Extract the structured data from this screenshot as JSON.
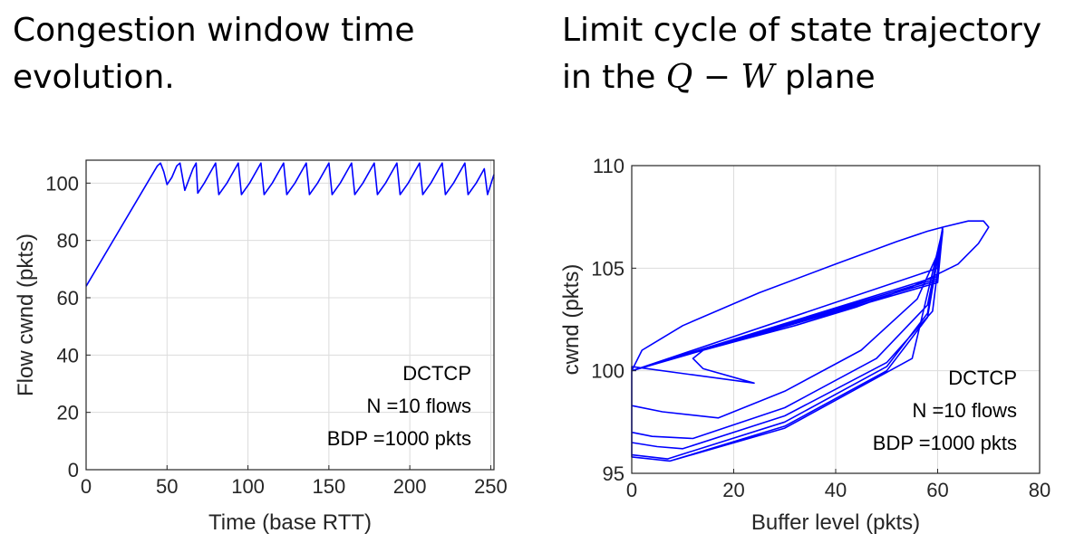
{
  "captions": {
    "left": "Congestion window time evolution.",
    "right_prefix": "Limit cycle of state trajectory in the ",
    "right_math": "Q − W",
    "right_suffix": " plane"
  },
  "colors": {
    "series": "#0000ff",
    "grid": "#dcdcdc",
    "axis": "#262626"
  },
  "chart_data": [
    {
      "type": "line",
      "title": "",
      "xlabel": "Time (base RTT)",
      "ylabel": "Flow cwnd (pkts)",
      "xlim": [
        0,
        252
      ],
      "ylim": [
        0,
        108
      ],
      "xticks": [
        0,
        50,
        100,
        150,
        200,
        250
      ],
      "yticks": [
        0,
        20,
        40,
        60,
        80,
        100
      ],
      "grid": true,
      "annotations": [
        "DCTCP",
        "N =10 flows",
        "BDP =1000 pkts"
      ],
      "series": [
        {
          "x": [
            0,
            44,
            46,
            48,
            50,
            53,
            56,
            58,
            61,
            66,
            68,
            69,
            73,
            78,
            80,
            82,
            87,
            92,
            94,
            96,
            101,
            106,
            108,
            110,
            115,
            120,
            122,
            124,
            129,
            134,
            136,
            138,
            143,
            148,
            150,
            152,
            157,
            162,
            164,
            166,
            171,
            176,
            178,
            180,
            185,
            190,
            192,
            194,
            199,
            204,
            206,
            208,
            213,
            218,
            220,
            222,
            227,
            232,
            234,
            236,
            241,
            246,
            248,
            252
          ],
          "y": [
            64,
            106,
            107,
            104,
            99.5,
            102,
            106,
            107,
            97.5,
            105,
            107,
            96.5,
            100,
            105,
            107,
            96,
            100,
            105,
            107,
            96,
            100,
            105,
            107,
            96,
            100,
            105,
            107,
            96,
            100,
            105,
            107,
            96,
            100,
            105,
            107,
            96,
            100,
            105,
            107,
            96,
            100,
            105,
            107,
            96,
            100,
            105,
            107,
            96,
            100,
            105,
            107,
            96,
            100,
            105,
            107,
            96,
            100,
            105,
            107,
            96,
            100,
            105,
            96,
            103
          ]
        }
      ]
    },
    {
      "type": "line",
      "title": "",
      "xlabel": "Buffer level (pkts)",
      "ylabel": "cwnd (pkts)",
      "xlim": [
        0,
        80
      ],
      "ylim": [
        95,
        110
      ],
      "xticks": [
        0,
        20,
        40,
        60,
        80
      ],
      "yticks": [
        95,
        100,
        105,
        110
      ],
      "grid": true,
      "annotations": [
        "DCTCP",
        "N =10 flows",
        "BDP =1000 pkts"
      ],
      "series": [
        {
          "x": [
            0,
            2,
            10,
            25,
            40,
            52,
            58,
            61,
            66,
            69,
            70,
            68,
            64,
            55,
            44,
            32,
            20,
            14,
            12,
            14,
            24,
            0,
            0,
            6,
            17,
            30,
            45,
            56,
            60,
            61,
            60,
            0,
            0,
            4,
            12,
            30,
            48,
            58,
            61,
            60,
            0,
            0,
            5,
            10,
            30,
            50,
            59,
            61,
            60,
            0,
            0,
            7,
            30,
            50,
            58,
            61,
            60,
            0,
            0,
            7.5,
            30,
            50,
            58,
            61,
            60,
            0,
            0,
            7.5,
            30,
            55,
            61
          ],
          "y": [
            100,
            101,
            102.2,
            103.8,
            105.2,
            106.3,
            106.8,
            107,
            107.3,
            107.3,
            107,
            106.2,
            105.2,
            104.1,
            103.1,
            102.2,
            101.4,
            101,
            100.6,
            100.1,
            99.4,
            100.2,
            98.3,
            98.0,
            97.7,
            99.0,
            101.0,
            103.5,
            105.7,
            107,
            105,
            100,
            97.0,
            96.8,
            96.7,
            98.2,
            100.6,
            103.2,
            106.8,
            104.5,
            100,
            96.5,
            96.3,
            96.2,
            97.8,
            100.4,
            102.9,
            106.9,
            104.6,
            100,
            95.9,
            95.7,
            97.5,
            100.2,
            102.8,
            106.9,
            104.4,
            100,
            95.8,
            95.6,
            97.3,
            100.0,
            102.6,
            106.9,
            104.3,
            100,
            95.8,
            95.6,
            97.2,
            100.6,
            106.9
          ]
        }
      ]
    }
  ]
}
